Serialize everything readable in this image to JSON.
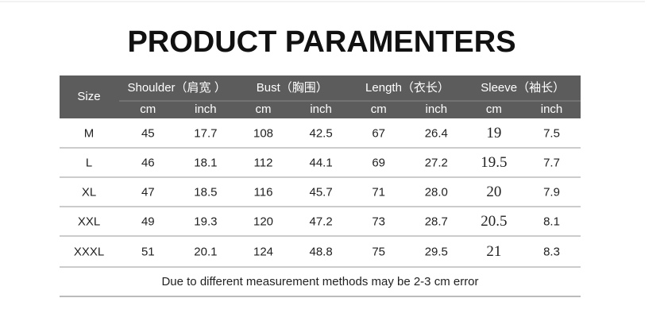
{
  "title": "PRODUCT PARAMENTERS",
  "table": {
    "size_header": "Size",
    "groups": [
      "Shoulder（肩宽 ）",
      "Bust（胸围）",
      "Length（衣长）",
      "Sleeve（袖长）"
    ],
    "units": [
      "cm",
      "inch",
      "cm",
      "inch",
      "cm",
      "inch",
      "cm",
      "inch"
    ],
    "rows": [
      [
        "M",
        "45",
        "17.7",
        "108",
        "42.5",
        "67",
        "26.4",
        "19",
        "7.5"
      ],
      [
        "L",
        "46",
        "18.1",
        "112",
        "44.1",
        "69",
        "27.2",
        "19.5",
        "7.7"
      ],
      [
        "XL",
        "47",
        "18.5",
        "116",
        "45.7",
        "71",
        "28.0",
        "20",
        "7.9"
      ],
      [
        "XXL",
        "49",
        "19.3",
        "120",
        "47.2",
        "73",
        "28.7",
        "20.5",
        "8.1"
      ],
      [
        "XXXL",
        "51",
        "20.1",
        "124",
        "48.8",
        "75",
        "29.5",
        "21",
        "8.3"
      ]
    ],
    "note": "Due to different measurement methods may be 2-3 cm error"
  }
}
